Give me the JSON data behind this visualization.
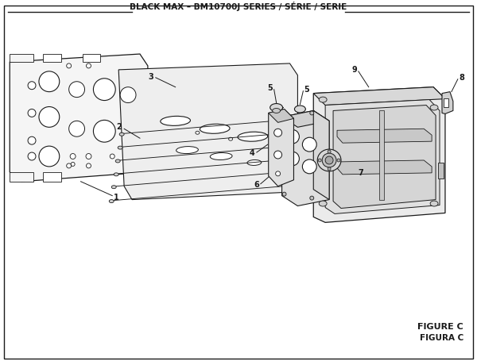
{
  "title": "BLACK MAX – BM10700J SERIES / SÉRIE / SERIE",
  "figure_label": "FIGURE C",
  "figura_label": "FIGURA C",
  "bg_color": "#ffffff",
  "line_color": "#1a1a1a",
  "fill_panel": "#f5f5f5",
  "fill_gasket": "#eeeeee",
  "fill_carb": "#e8e8e8",
  "fill_housing": "#ebebeb",
  "figsize": [
    6.0,
    4.55
  ],
  "dpi": 100
}
